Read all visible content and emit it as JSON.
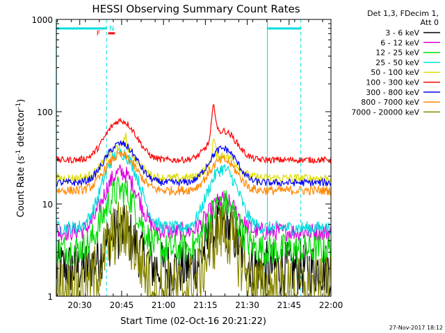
{
  "chart_data": {
    "type": "line",
    "title": "HESSI Observing Summary Count Rates",
    "xlabel": "Start Time (02-Oct-16 20:21:22)",
    "ylabel": "Count Rate (s⁻¹ detector⁻¹)",
    "ylabel_parts": [
      "Count Rate (s",
      "-1",
      " detector",
      "-1",
      ")"
    ],
    "yscale": "log",
    "ylim": [
      1,
      1000
    ],
    "xlim_minutes": [
      20.36,
      22.0
    ],
    "x_ticks": [
      "20:30",
      "20:45",
      "21:00",
      "21:15",
      "21:30",
      "21:45",
      "22:00"
    ],
    "x_tick_values": [
      20.5,
      20.75,
      21.0,
      21.25,
      21.5,
      21.75,
      22.0
    ],
    "y_ticks": [
      "1",
      "10",
      "100",
      "1000"
    ],
    "y_tick_values": [
      1,
      10,
      100,
      1000
    ],
    "legend_header": [
      "Det 1,3, FDecim 1,",
      "Att 0"
    ],
    "legend_location": "right",
    "series": [
      {
        "name": "3 - 6 keV",
        "color": "#000000",
        "base": 2.0,
        "peak1": 5,
        "peak2": 6,
        "noise": 0.6
      },
      {
        "name": "6 - 12 keV",
        "color": "#dd00dd",
        "base": 5.0,
        "peak1": 22,
        "peak2": 11,
        "noise": 0.2
      },
      {
        "name": "12 - 25 keV",
        "color": "#00dd00",
        "base": 3.2,
        "peak1": 14,
        "peak2": 10,
        "noise": 0.35
      },
      {
        "name": "25 - 50 keV",
        "color": "#00dddd",
        "base": 5.5,
        "peak1": 36,
        "peak2": 24,
        "noise": 0.15
      },
      {
        "name": "50 - 100 keV",
        "color": "#dddd00",
        "base": 19,
        "peak1": 42,
        "peak2": 34,
        "noise": 0.1
      },
      {
        "name": "100 - 300 keV",
        "color": "#ff0000",
        "base": 30,
        "peak1": 80,
        "peak2": 62,
        "noise": 0.07
      },
      {
        "name": "300 - 800 keV",
        "color": "#0000ff",
        "base": 17,
        "peak1": 45,
        "peak2": 40,
        "noise": 0.08
      },
      {
        "name": "800 - 7000 keV",
        "color": "#ff8800",
        "base": 14,
        "peak1": 34,
        "peak2": 30,
        "noise": 0.1
      },
      {
        "name": "7000 - 20000 keV",
        "color": "#888800",
        "base": 1.2,
        "peak1": 5,
        "peak2": 5,
        "noise": 0.7
      }
    ],
    "flags": [
      {
        "label": "N",
        "color": "#00dddd"
      },
      {
        "label": "F",
        "color": "#ff0000"
      }
    ],
    "footer_date": "27-Nov-2017 18:12"
  }
}
